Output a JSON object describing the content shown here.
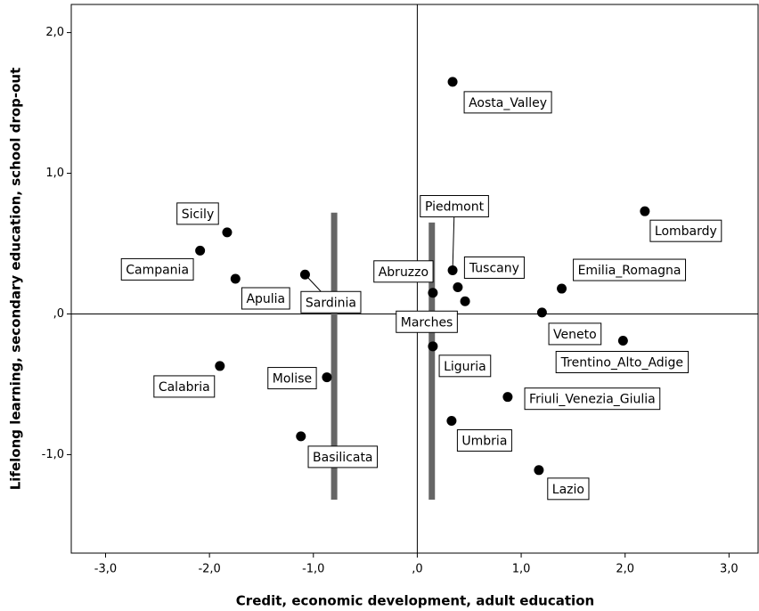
{
  "chart_data": {
    "type": "scatter",
    "x_label": "Credit, economic development, adult education",
    "y_label": "Lifelong learning, secondary education, school drop-out",
    "xlim": [
      -3.33,
      3.28
    ],
    "ylim": [
      -1.7,
      2.2
    ],
    "xticks": [
      {
        "value": -3,
        "label": "-3,0"
      },
      {
        "value": -2,
        "label": "-2,0"
      },
      {
        "value": -1,
        "label": "-1,0"
      },
      {
        "value": 0,
        "label": ",0"
      },
      {
        "value": 1,
        "label": "1,0"
      },
      {
        "value": 2,
        "label": "2,0"
      },
      {
        "value": 3,
        "label": "3,0"
      }
    ],
    "yticks": [
      {
        "value": -1,
        "label": "-1,0"
      },
      {
        "value": 0,
        "label": ",0"
      },
      {
        "value": 1,
        "label": "1,0"
      },
      {
        "value": 2,
        "label": "2,0"
      }
    ],
    "color": "#000000",
    "points": [
      {
        "label": "Aosta_Valley",
        "x": 0.34,
        "y": 1.65
      },
      {
        "label": "Lombardy",
        "x": 2.19,
        "y": 0.73
      },
      {
        "label": "Sicily",
        "x": -1.83,
        "y": 0.58
      },
      {
        "label": "Campania",
        "x": -2.09,
        "y": 0.45
      },
      {
        "label": "Apulia",
        "x": -1.75,
        "y": 0.25
      },
      {
        "label": "Sardinia",
        "x": -1.08,
        "y": 0.28
      },
      {
        "label": "Piedmont",
        "x": 0.34,
        "y": 0.31
      },
      {
        "label": "Tuscany",
        "x": 0.39,
        "y": 0.19
      },
      {
        "label": "Abruzzo",
        "x": 0.15,
        "y": 0.15
      },
      {
        "label": "Marches",
        "x": 0.46,
        "y": 0.09
      },
      {
        "label": "Emilia_Romagna",
        "x": 1.39,
        "y": 0.18
      },
      {
        "label": "Veneto",
        "x": 1.2,
        "y": 0.01
      },
      {
        "label": "Trentino_Alto_Adige",
        "x": 1.98,
        "y": -0.19
      },
      {
        "label": "Liguria",
        "x": 0.15,
        "y": -0.23
      },
      {
        "label": "Calabria",
        "x": -1.9,
        "y": -0.37
      },
      {
        "label": "Molise",
        "x": -0.87,
        "y": -0.45
      },
      {
        "label": "Friuli_Venezia_Giulia",
        "x": 0.87,
        "y": -0.59
      },
      {
        "label": "Umbria",
        "x": 0.33,
        "y": -0.76
      },
      {
        "label": "Basilicata",
        "x": -1.12,
        "y": -0.87
      },
      {
        "label": "Lazio",
        "x": 1.17,
        "y": -1.11
      }
    ],
    "bars": [
      {
        "x": -0.8,
        "ymin": -1.32,
        "ymax": 0.72
      },
      {
        "x": 0.14,
        "ymin": -1.32,
        "ymax": 0.65
      }
    ],
    "bar_color": "#666666"
  }
}
